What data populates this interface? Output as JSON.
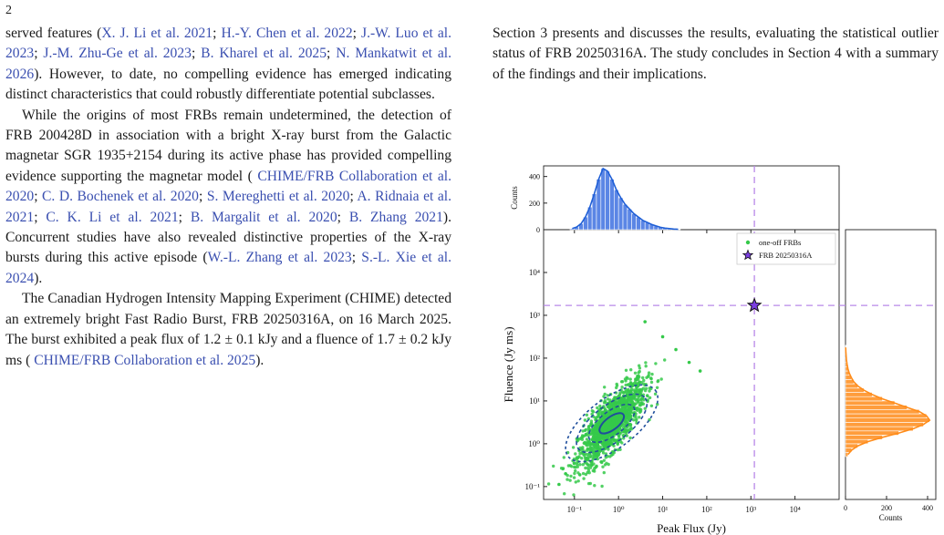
{
  "page_number": "2",
  "left_column": {
    "p1": [
      {
        "t": "served features ("
      },
      {
        "t": "X. J. Li et al. 2021",
        "c": 1
      },
      {
        "t": "; "
      },
      {
        "t": "H.-Y. Chen et al. 2022",
        "c": 1
      },
      {
        "t": "; "
      },
      {
        "t": "J.-W. Luo et al. 2023",
        "c": 1
      },
      {
        "t": "; "
      },
      {
        "t": "J.-M. Zhu-Ge et al. 2023",
        "c": 1
      },
      {
        "t": "; "
      },
      {
        "t": "B. Kharel et al. 2025",
        "c": 1
      },
      {
        "t": "; "
      },
      {
        "t": "N. Mankatwit et al. 2026",
        "c": 1
      },
      {
        "t": "). However, to date, no compelling evidence has emerged indicating distinct characteristics that could robustly differentiate potential subclasses."
      }
    ],
    "p2": [
      {
        "t": "While the origins of most FRBs remain undetermined, the detection of FRB 200428D in association with a bright X-ray burst from the Galactic magnetar SGR 1935+2154 during its active phase has provided compelling evidence supporting the magnetar model ( "
      },
      {
        "t": "CHIME/FRB Collaboration et al. 2020",
        "c": 1
      },
      {
        "t": "; "
      },
      {
        "t": "C. D. Bochenek et al. 2020",
        "c": 1
      },
      {
        "t": "; "
      },
      {
        "t": "S. Mereghetti et al. 2020",
        "c": 1
      },
      {
        "t": "; "
      },
      {
        "t": "A. Ridnaia et al. 2021",
        "c": 1
      },
      {
        "t": "; "
      },
      {
        "t": "C. K. Li et al. 2021",
        "c": 1
      },
      {
        "t": "; "
      },
      {
        "t": "B. Margalit et al. 2020",
        "c": 1
      },
      {
        "t": "; "
      },
      {
        "t": "B. Zhang 2021",
        "c": 1
      },
      {
        "t": "). Concurrent studies have also revealed distinctive properties of the X-ray bursts during this active episode ("
      },
      {
        "t": "W.-L. Zhang et al. 2023",
        "c": 1
      },
      {
        "t": "; "
      },
      {
        "t": "S.-L. Xie et al. 2024",
        "c": 1
      },
      {
        "t": ")."
      }
    ],
    "p3": [
      {
        "t": "The Canadian Hydrogen Intensity Mapping Experiment (CHIME) detected an extremely bright Fast Radio Burst, FRB 20250316A, on 16 March 2025. The burst exhibited a peak flux of 1.2 ± 0.1 kJy and a fluence of 1.7 ± 0.2 kJy ms ( "
      },
      {
        "t": "CHIME/FRB Collaboration et al. 2025",
        "c": 1
      },
      {
        "t": ")."
      }
    ]
  },
  "right_column": {
    "p1": "Section 3 presents and discusses the results, evaluating the statistical outlier status of FRB 20250316A. The study concludes in Section 4 with a summary of the findings and their implications."
  },
  "figure": {
    "colors": {
      "scatter": "#35c94a",
      "contour": "#1f4e9c",
      "top_hist": "#5b86e5",
      "top_kde": "#1f5fd6",
      "right_hist": "#ff9d3c",
      "right_kde": "#ff8c1a",
      "crosshair": "#b888e8",
      "star": "#7a3fe0"
    },
    "chart_data": [
      {
        "type": "scatter",
        "xlabel": "Peak Flux (Jy)",
        "ylabel": "Fluence (Jy ms)",
        "x_scale": "log",
        "y_scale": "log",
        "xlim": [
          0.02,
          100000
        ],
        "ylim": [
          0.05,
          100000
        ],
        "x_ticks": [
          "10⁻¹",
          "10⁰",
          "10¹",
          "10²",
          "10³",
          "10⁴"
        ],
        "y_ticks": [
          "10⁻¹",
          "10⁰",
          "10¹",
          "10²",
          "10³",
          "10⁴"
        ],
        "legend_position": "top-right",
        "series": [
          {
            "name": "one-off FRBs",
            "kind": "cloud",
            "center": [
              0.7,
              3
            ],
            "approx_range_x": [
              0.03,
              100
            ],
            "approx_range_y": [
              0.1,
              900
            ]
          },
          {
            "name": "FRB 20250316A",
            "marker": "star",
            "x": [
              1200
            ],
            "y": [
              1700
            ]
          }
        ],
        "contours": "density contours (solid and dashed) around the cloud center"
      },
      {
        "type": "bar",
        "ylabel": "Counts",
        "y_ticks": [
          "0",
          "200",
          "400"
        ],
        "ylim": [
          0,
          480
        ],
        "x_scale": "log",
        "bins_log10_peak_flux": [
          -1.1,
          -1.0,
          -0.9,
          -0.8,
          -0.7,
          -0.6,
          -0.5,
          -0.4,
          -0.3,
          -0.2,
          -0.1,
          0.0,
          0.1,
          0.2,
          0.3,
          0.4,
          0.5,
          0.6,
          0.7,
          0.8,
          0.9,
          1.0,
          1.1,
          1.2,
          1.3
        ],
        "values": [
          8,
          20,
          45,
          95,
          170,
          270,
          380,
          460,
          440,
          380,
          300,
          240,
          190,
          155,
          120,
          95,
          70,
          55,
          40,
          28,
          18,
          12,
          8,
          5,
          3
        ]
      },
      {
        "type": "bar",
        "orientation": "horizontal",
        "xlabel": "Counts",
        "x_ticks": [
          "0",
          "200",
          "400"
        ],
        "xlim": [
          0,
          440
        ],
        "bins_log10_fluence": [
          -0.3,
          -0.2,
          -0.1,
          0.0,
          0.1,
          0.2,
          0.3,
          0.4,
          0.5,
          0.6,
          0.7,
          0.8,
          0.9,
          1.0,
          1.1,
          1.2,
          1.3,
          1.4,
          1.5,
          1.6,
          1.7,
          1.8,
          1.9,
          2.0,
          2.1,
          2.2
        ],
        "values": [
          12,
          30,
          60,
          110,
          180,
          260,
          330,
          380,
          410,
          395,
          360,
          300,
          240,
          180,
          130,
          90,
          60,
          40,
          28,
          18,
          12,
          8,
          5,
          3,
          2,
          1
        ]
      }
    ]
  }
}
